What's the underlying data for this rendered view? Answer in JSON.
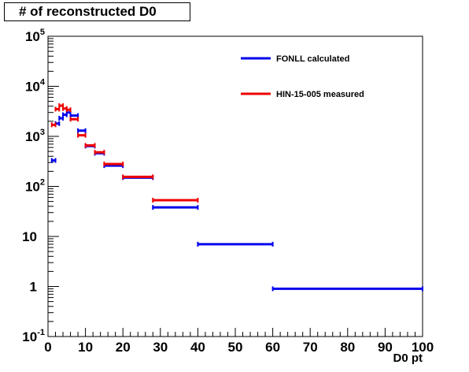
{
  "chart_data": {
    "type": "histogram",
    "title": "# of reconstructed D0",
    "xlabel": "D0 pt",
    "ylabel": "",
    "xlim": [
      0,
      100
    ],
    "ylim": [
      0.1,
      100000
    ],
    "yscale": "log",
    "grid": false,
    "legend_position": "top-right",
    "x_tick_labels": [
      "0",
      "10",
      "20",
      "30",
      "40",
      "50",
      "60",
      "70",
      "80",
      "90",
      "100"
    ],
    "y_tick_labels": [
      "10^-1",
      "1",
      "10",
      "10^2",
      "10^3",
      "10^4",
      "10^5"
    ],
    "series": [
      {
        "name": "FONLL calculated",
        "color": "#0000ee",
        "bins": [
          {
            "x0": 1,
            "x1": 2,
            "y": 330
          },
          {
            "x0": 2,
            "x1": 3,
            "y": 1800
          },
          {
            "x0": 3,
            "x1": 4,
            "y": 2300
          },
          {
            "x0": 4,
            "x1": 5,
            "y": 2700
          },
          {
            "x0": 5,
            "x1": 6,
            "y": 3000
          },
          {
            "x0": 6,
            "x1": 8,
            "y": 2600
          },
          {
            "x0": 8,
            "x1": 10,
            "y": 1300
          },
          {
            "x0": 10,
            "x1": 12.5,
            "y": 640
          },
          {
            "x0": 12.5,
            "x1": 15,
            "y": 460
          },
          {
            "x0": 15,
            "x1": 20,
            "y": 260
          },
          {
            "x0": 20,
            "x1": 28,
            "y": 150
          },
          {
            "x0": 28,
            "x1": 40,
            "y": 38
          },
          {
            "x0": 40,
            "x1": 60,
            "y": 7
          },
          {
            "x0": 60,
            "x1": 100,
            "y": 0.9
          }
        ]
      },
      {
        "name": "HIN-15-005 measured",
        "color": "#ee0000",
        "bins": [
          {
            "x0": 1,
            "x1": 2,
            "y": 1700
          },
          {
            "x0": 2,
            "x1": 3,
            "y": 3500
          },
          {
            "x0": 3,
            "x1": 4,
            "y": 4100
          },
          {
            "x0": 4,
            "x1": 5,
            "y": 3600
          },
          {
            "x0": 5,
            "x1": 6,
            "y": 3400
          },
          {
            "x0": 6,
            "x1": 8,
            "y": 2200
          },
          {
            "x0": 8,
            "x1": 10,
            "y": 1050
          },
          {
            "x0": 10,
            "x1": 12.5,
            "y": 660
          },
          {
            "x0": 12.5,
            "x1": 15,
            "y": 480
          },
          {
            "x0": 15,
            "x1": 20,
            "y": 280
          },
          {
            "x0": 20,
            "x1": 28,
            "y": 155
          },
          {
            "x0": 28,
            "x1": 40,
            "y": 53
          }
        ]
      }
    ]
  }
}
